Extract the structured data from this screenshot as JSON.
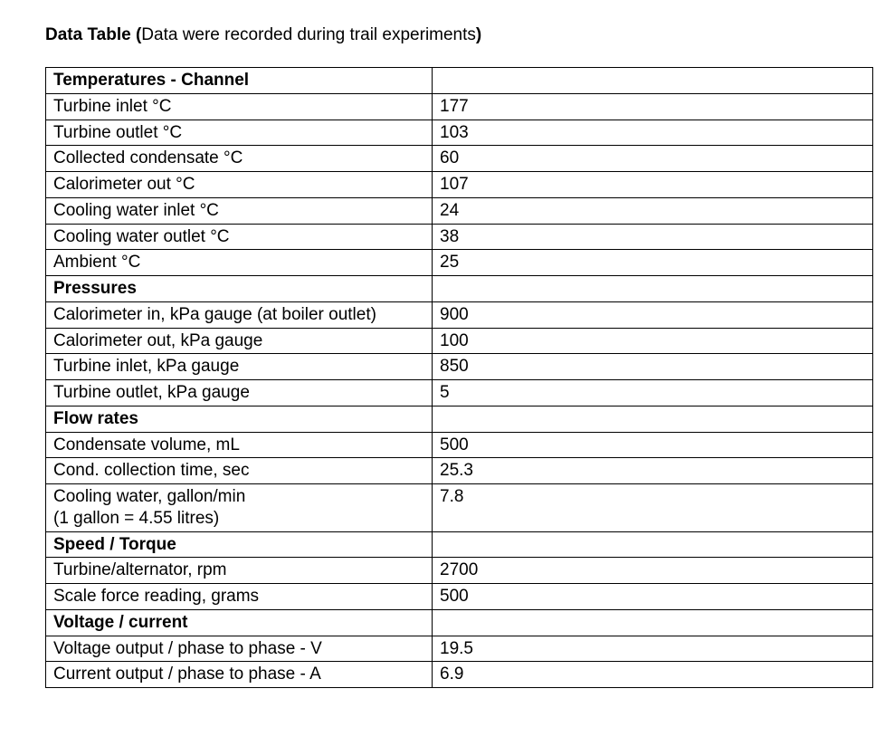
{
  "title_prefix": "Data Table (",
  "title_middle": "Data were recorded during trail experiments",
  "title_suffix": ")",
  "table": {
    "columns_widths": [
      410,
      470
    ],
    "border_color": "#000000",
    "background_color": "#ffffff",
    "text_color": "#000000",
    "font_size": 19,
    "sections": [
      {
        "header": "Temperatures - Channel",
        "rows": [
          {
            "label": "Turbine inlet °C",
            "value": "177"
          },
          {
            "label": "Turbine outlet °C",
            "value": "103"
          },
          {
            "label": "Collected condensate °C",
            "value": "60"
          },
          {
            "label": "Calorimeter out °C",
            "value": "107"
          },
          {
            "label": "Cooling water inlet °C",
            "value": "24"
          },
          {
            "label": "Cooling water outlet °C",
            "value": "38"
          },
          {
            "label": "Ambient °C",
            "value": "25"
          }
        ]
      },
      {
        "header": "Pressures",
        "rows": [
          {
            "label": "Calorimeter in, kPa gauge (at boiler outlet)",
            "value": "900"
          },
          {
            "label": "Calorimeter out, kPa gauge",
            "value": "100"
          },
          {
            "label": "Turbine inlet, kPa gauge",
            "value": "850"
          },
          {
            "label": "Turbine outlet, kPa gauge",
            "value": "5"
          }
        ]
      },
      {
        "header": "Flow rates",
        "rows": [
          {
            "label": "Condensate volume, mL",
            "value": "500"
          },
          {
            "label": "Cond. collection time, sec",
            "value": "25.3"
          },
          {
            "label": "Cooling water, gallon/min\n(1 gallon = 4.55 litres)",
            "value": "7.8"
          }
        ]
      },
      {
        "header": "Speed / Torque",
        "rows": [
          {
            "label": "Turbine/alternator, rpm",
            "value": "2700"
          },
          {
            "label": "Scale force reading, grams",
            "value": "500"
          }
        ]
      },
      {
        "header": "Voltage / current",
        "rows": [
          {
            "label": "Voltage output / phase to phase - V",
            "value": "19.5"
          },
          {
            "label": "Current output / phase to phase - A",
            "value": "6.9"
          }
        ]
      }
    ]
  }
}
